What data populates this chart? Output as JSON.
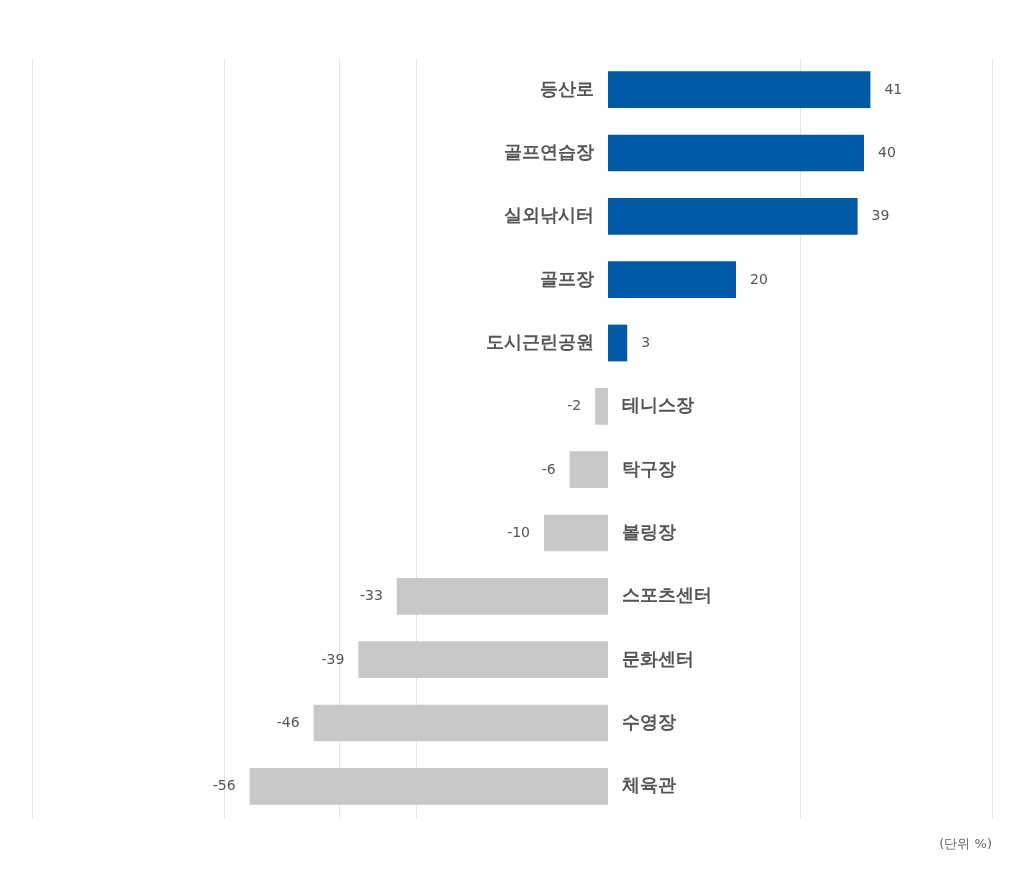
{
  "chart_data": {
    "type": "bar",
    "orientation": "horizontal",
    "categories": [
      "등산로",
      "골프연습장",
      "실외낚시터",
      "골프장",
      "도시근린공원",
      "테니스장",
      "탁구장",
      "볼링장",
      "스포츠센터",
      "문화센터",
      "수영장",
      "체육관"
    ],
    "values": [
      41,
      40,
      39,
      20,
      3,
      -2,
      -6,
      -10,
      -33,
      -39,
      -46,
      -56
    ],
    "colors": [
      "#005aa5",
      "#005aa5",
      "#005aa5",
      "#005aa5",
      "#005aa5",
      "#c8c8c8",
      "#c8c8c8",
      "#c8c8c8",
      "#c8c8c8",
      "#c8c8c8",
      "#c8c8c8",
      "#c8c8c8"
    ],
    "xlim": [
      -90,
      60
    ],
    "xticks": [
      {
        "value": -90,
        "label": null
      },
      {
        "value": -60,
        "label": null
      },
      {
        "value": -42,
        "label": null
      },
      {
        "value": -30,
        "label": null
      },
      {
        "value": 30,
        "label": null
      },
      {
        "value": 60,
        "label": null
      }
    ],
    "grid": "x",
    "data_labels": true,
    "annotations": [
      "(단위 %)"
    ]
  }
}
